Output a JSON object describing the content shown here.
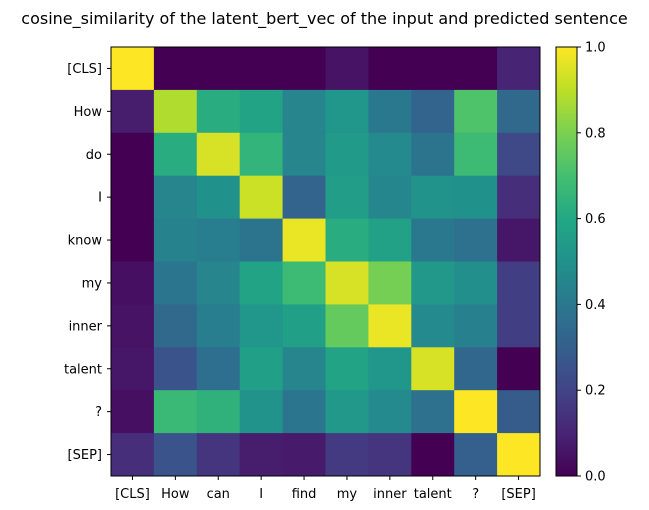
{
  "chart_data": {
    "type": "heatmap",
    "title": "cosine_similarity of the latent_bert_vec of the input and predicted sentence",
    "x_tick_labels": [
      "[CLS]",
      "How",
      "can",
      "I",
      "find",
      "my",
      "inner",
      "talent",
      "?",
      "[SEP]"
    ],
    "y_tick_labels": [
      "[CLS]",
      "How",
      "do",
      "I",
      "know",
      "my",
      "inner",
      "talent",
      "?",
      "[SEP]"
    ],
    "values": [
      [
        1.0,
        0.0,
        0.0,
        0.0,
        0.0,
        0.05,
        0.0,
        0.0,
        0.0,
        0.1
      ],
      [
        0.08,
        0.88,
        0.62,
        0.58,
        0.45,
        0.52,
        0.4,
        0.32,
        0.72,
        0.34
      ],
      [
        0.0,
        0.62,
        0.94,
        0.65,
        0.45,
        0.54,
        0.47,
        0.38,
        0.68,
        0.22
      ],
      [
        0.0,
        0.45,
        0.5,
        0.92,
        0.32,
        0.55,
        0.46,
        0.51,
        0.5,
        0.13
      ],
      [
        0.0,
        0.44,
        0.42,
        0.38,
        0.97,
        0.62,
        0.57,
        0.4,
        0.37,
        0.06
      ],
      [
        0.04,
        0.39,
        0.45,
        0.58,
        0.68,
        0.94,
        0.79,
        0.53,
        0.49,
        0.18
      ],
      [
        0.05,
        0.34,
        0.42,
        0.52,
        0.56,
        0.76,
        0.97,
        0.47,
        0.43,
        0.18
      ],
      [
        0.06,
        0.26,
        0.36,
        0.56,
        0.45,
        0.58,
        0.52,
        0.94,
        0.33,
        0.0
      ],
      [
        0.04,
        0.67,
        0.64,
        0.51,
        0.39,
        0.53,
        0.47,
        0.37,
        1.0,
        0.29
      ],
      [
        0.13,
        0.26,
        0.15,
        0.08,
        0.07,
        0.17,
        0.15,
        0.0,
        0.3,
        1.0
      ]
    ],
    "vmin": 0.0,
    "vmax": 1.0,
    "colormap": "viridis",
    "colorbar_ticks": [
      "0.0",
      "0.2",
      "0.4",
      "0.6",
      "0.8",
      "1.0"
    ],
    "colorbar_tick_values": [
      0.0,
      0.2,
      0.4,
      0.6,
      0.8,
      1.0
    ],
    "grid": false
  }
}
